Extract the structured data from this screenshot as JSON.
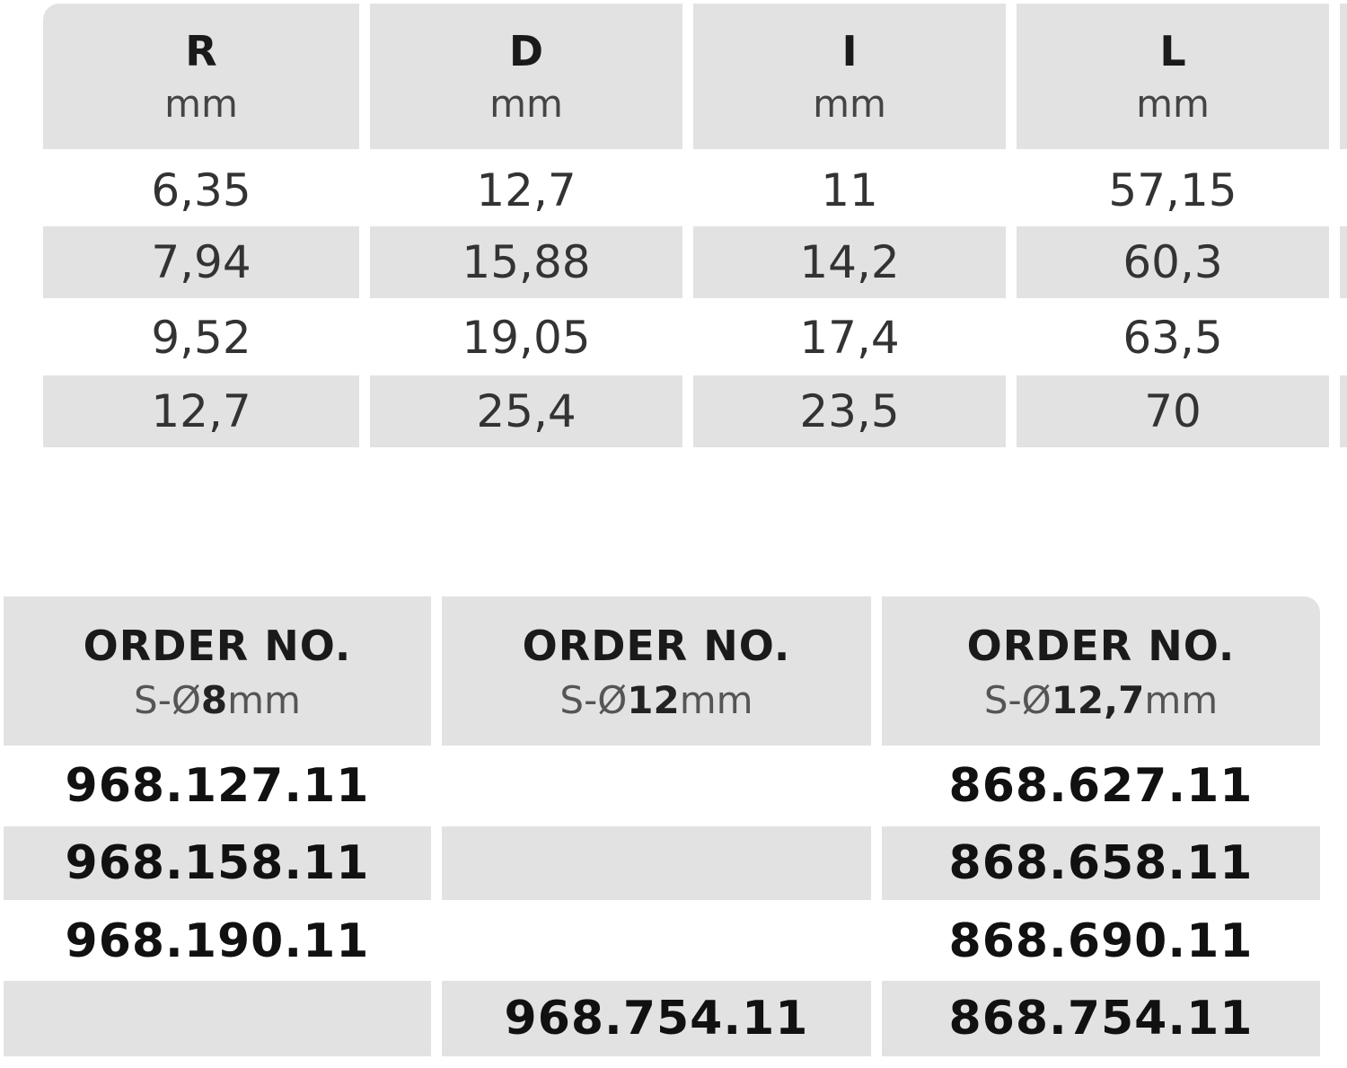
{
  "table1": {
    "header": [
      {
        "label": "R",
        "unit": "mm"
      },
      {
        "label": "D",
        "unit": "mm"
      },
      {
        "label": "I",
        "unit": "mm"
      },
      {
        "label": "L",
        "unit": "mm"
      }
    ],
    "rows": [
      [
        "6,35",
        "12,7",
        "11",
        "57,15"
      ],
      [
        "7,94",
        "15,88",
        "14,2",
        "60,3"
      ],
      [
        "9,52",
        "19,05",
        "17,4",
        "63,5"
      ],
      [
        "12,7",
        "25,4",
        "23,5",
        "70"
      ]
    ]
  },
  "table2": {
    "header": [
      {
        "label": "ORDER NO.",
        "unit_prefix": "S-Ø",
        "unit_size": "8",
        "unit_suffix": "mm"
      },
      {
        "label": "ORDER NO.",
        "unit_prefix": "S-Ø",
        "unit_size": "12",
        "unit_suffix": "mm"
      },
      {
        "label": "ORDER NO.",
        "unit_prefix": "S-Ø",
        "unit_size": "12,7",
        "unit_suffix": "mm"
      }
    ],
    "rows": [
      [
        "968.127.11",
        null,
        "868.627.11"
      ],
      [
        "968.158.11",
        null,
        "868.658.11"
      ],
      [
        "968.190.11",
        null,
        "868.690.11"
      ],
      [
        null,
        "968.754.11",
        "868.754.11"
      ]
    ]
  }
}
